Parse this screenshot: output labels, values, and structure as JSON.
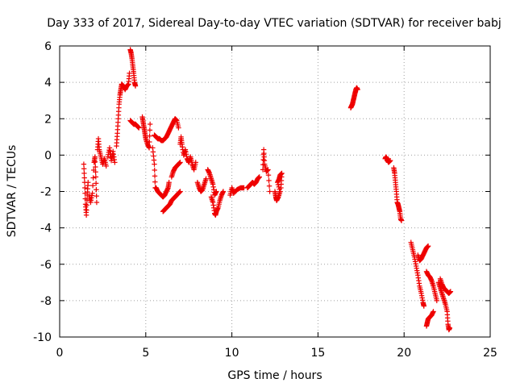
{
  "chart_data": {
    "type": "scatter",
    "title": "Day 333 of 2017, Sidereal Day-to-day VTEC variation (SDTVAR) for receiver babj",
    "xlabel": "GPS time / hours",
    "ylabel": "SDTVAR / TECUs",
    "xlim": [
      0,
      25
    ],
    "ylim": [
      -10,
      6
    ],
    "xticks": [
      0,
      5,
      10,
      15,
      20,
      25
    ],
    "yticks": [
      -10,
      -8,
      -6,
      -4,
      -2,
      0,
      2,
      4,
      6
    ],
    "grid": true,
    "marker": "+",
    "color": "#ee0000",
    "segments": [
      [
        [
          1.4,
          -0.5
        ],
        [
          1.45,
          -1.5
        ],
        [
          1.5,
          -2.7
        ],
        [
          1.55,
          -3.3
        ],
        [
          1.6,
          -2.2
        ],
        [
          1.65,
          -1.5
        ]
      ],
      [
        [
          1.7,
          -2.2
        ],
        [
          1.8,
          -2.6
        ],
        [
          1.9,
          -2.1
        ],
        [
          2.0,
          -0.4
        ],
        [
          2.05,
          -0.1
        ],
        [
          2.1,
          -1.2
        ],
        [
          2.15,
          -2.6
        ]
      ],
      [
        [
          2.2,
          0.3
        ],
        [
          2.25,
          0.9
        ],
        [
          2.3,
          0.3
        ],
        [
          2.4,
          -0.1
        ],
        [
          2.5,
          -0.5
        ],
        [
          2.6,
          -0.2
        ],
        [
          2.7,
          -0.6
        ]
      ],
      [
        [
          2.8,
          -0.1
        ],
        [
          2.9,
          0.4
        ],
        [
          3.0,
          -0.3
        ],
        [
          3.1,
          0.2
        ],
        [
          3.2,
          -0.4
        ]
      ],
      [
        [
          3.3,
          0.5
        ],
        [
          3.35,
          1.2
        ],
        [
          3.4,
          2.0
        ],
        [
          3.45,
          2.8
        ],
        [
          3.5,
          3.3
        ],
        [
          3.55,
          3.6
        ],
        [
          3.6,
          3.9
        ],
        [
          3.7,
          3.8
        ],
        [
          3.8,
          3.6
        ],
        [
          3.9,
          3.8
        ],
        [
          4.0,
          3.9
        ],
        [
          4.05,
          4.5
        ]
      ],
      [
        [
          4.1,
          5.8
        ],
        [
          4.15,
          5.6
        ],
        [
          4.2,
          5.3
        ],
        [
          4.25,
          4.9
        ],
        [
          4.3,
          4.5
        ],
        [
          4.35,
          4.0
        ],
        [
          4.4,
          3.8
        ]
      ],
      [
        [
          4.1,
          1.9
        ],
        [
          4.2,
          1.8
        ],
        [
          4.3,
          1.7
        ],
        [
          4.4,
          1.7
        ],
        [
          4.5,
          1.6
        ],
        [
          4.6,
          1.5
        ]
      ],
      [
        [
          4.8,
          2.1
        ],
        [
          4.85,
          1.8
        ],
        [
          4.9,
          1.5
        ],
        [
          4.95,
          1.2
        ],
        [
          5.0,
          0.9
        ],
        [
          5.1,
          0.6
        ],
        [
          5.2,
          0.4
        ],
        [
          5.25,
          1.7
        ]
      ],
      [
        [
          5.4,
          0.4
        ],
        [
          5.5,
          -0.5
        ],
        [
          5.55,
          -1.8
        ],
        [
          5.6,
          -1.8
        ],
        [
          5.7,
          -2.0
        ],
        [
          5.8,
          -2.1
        ],
        [
          5.9,
          -2.2
        ],
        [
          6.0,
          -2.3
        ],
        [
          6.1,
          -2.2
        ],
        [
          6.2,
          -2.0
        ],
        [
          6.3,
          -1.8
        ],
        [
          6.35,
          -1.5
        ]
      ],
      [
        [
          5.5,
          1.1
        ],
        [
          5.6,
          1.0
        ],
        [
          5.7,
          0.9
        ],
        [
          5.8,
          0.9
        ],
        [
          5.9,
          0.8
        ],
        [
          6.0,
          0.8
        ],
        [
          6.1,
          0.9
        ],
        [
          6.2,
          1.0
        ],
        [
          6.3,
          1.2
        ],
        [
          6.4,
          1.4
        ],
        [
          6.5,
          1.6
        ],
        [
          6.6,
          1.8
        ],
        [
          6.7,
          2.0
        ],
        [
          6.8,
          1.9
        ],
        [
          6.9,
          1.5
        ]
      ],
      [
        [
          6.0,
          -3.1
        ],
        [
          6.1,
          -3.0
        ],
        [
          6.2,
          -2.9
        ],
        [
          6.3,
          -2.8
        ],
        [
          6.4,
          -2.7
        ],
        [
          6.5,
          -2.5
        ],
        [
          6.6,
          -2.4
        ],
        [
          6.7,
          -2.3
        ],
        [
          6.8,
          -2.2
        ],
        [
          6.9,
          -2.1
        ],
        [
          7.0,
          -2.0
        ]
      ],
      [
        [
          6.5,
          -1.2
        ],
        [
          6.6,
          -0.9
        ],
        [
          6.7,
          -0.7
        ],
        [
          6.8,
          -0.6
        ],
        [
          6.9,
          -0.5
        ],
        [
          7.0,
          -0.4
        ]
      ],
      [
        [
          7.0,
          0.6
        ],
        [
          7.05,
          1.0
        ],
        [
          7.1,
          0.6
        ],
        [
          7.2,
          0.0
        ],
        [
          7.3,
          0.3
        ],
        [
          7.4,
          -0.2
        ],
        [
          7.5,
          -0.4
        ],
        [
          7.6,
          -0.1
        ],
        [
          7.7,
          -0.5
        ],
        [
          7.8,
          -0.8
        ],
        [
          7.9,
          -0.4
        ]
      ],
      [
        [
          8.0,
          -1.5
        ],
        [
          8.1,
          -1.8
        ],
        [
          8.2,
          -2.0
        ],
        [
          8.3,
          -1.9
        ],
        [
          8.4,
          -1.6
        ],
        [
          8.5,
          -1.3
        ]
      ],
      [
        [
          8.6,
          -0.8
        ],
        [
          8.7,
          -1.0
        ],
        [
          8.8,
          -1.3
        ],
        [
          8.9,
          -1.6
        ],
        [
          9.0,
          -2.2
        ],
        [
          9.1,
          -2.0
        ]
      ],
      [
        [
          8.8,
          -2.3
        ],
        [
          8.9,
          -2.6
        ],
        [
          9.0,
          -3.2
        ],
        [
          9.05,
          -3.3
        ],
        [
          9.1,
          -3.1
        ],
        [
          9.2,
          -2.9
        ],
        [
          9.3,
          -2.5
        ],
        [
          9.4,
          -2.2
        ],
        [
          9.5,
          -2.0
        ]
      ],
      [
        [
          9.9,
          -2.2
        ],
        [
          10.0,
          -1.8
        ],
        [
          10.1,
          -2.1
        ],
        [
          10.3,
          -1.9
        ],
        [
          10.5,
          -1.8
        ],
        [
          10.7,
          -1.8
        ]
      ],
      [
        [
          10.9,
          -1.8
        ],
        [
          11.0,
          -1.7
        ],
        [
          11.1,
          -1.6
        ],
        [
          11.2,
          -1.5
        ],
        [
          11.3,
          -1.6
        ],
        [
          11.4,
          -1.5
        ],
        [
          11.5,
          -1.3
        ],
        [
          11.6,
          -1.2
        ]
      ],
      [
        [
          11.8,
          -0.8
        ],
        [
          11.85,
          0.3
        ],
        [
          11.9,
          -0.5
        ],
        [
          12.0,
          -0.9
        ],
        [
          12.1,
          -0.8
        ],
        [
          12.2,
          -2.0
        ]
      ],
      [
        [
          12.5,
          -2.0
        ],
        [
          12.55,
          -2.3
        ],
        [
          12.6,
          -2.5
        ],
        [
          12.7,
          -2.3
        ],
        [
          12.8,
          -2.0
        ],
        [
          12.65,
          -1.5
        ],
        [
          12.75,
          -1.3
        ],
        [
          12.8,
          -1.1
        ],
        [
          12.9,
          -1.0
        ],
        [
          12.85,
          -1.8
        ]
      ],
      [
        [
          16.9,
          2.6
        ],
        [
          16.95,
          2.7
        ],
        [
          17.0,
          2.8
        ],
        [
          17.05,
          3.0
        ],
        [
          17.1,
          3.2
        ],
        [
          17.15,
          3.4
        ],
        [
          17.2,
          3.6
        ],
        [
          17.25,
          3.7
        ],
        [
          17.3,
          3.6
        ]
      ],
      [
        [
          18.9,
          -0.2
        ],
        [
          18.95,
          -0.1
        ],
        [
          19.0,
          -0.2
        ],
        [
          19.05,
          -0.3
        ],
        [
          19.1,
          -0.4
        ],
        [
          19.2,
          -0.3
        ]
      ],
      [
        [
          19.4,
          -0.7
        ],
        [
          19.45,
          -1.0
        ],
        [
          19.5,
          -1.5
        ],
        [
          19.55,
          -2.0
        ],
        [
          19.6,
          -2.6
        ],
        [
          19.65,
          -2.7
        ],
        [
          19.7,
          -2.9
        ],
        [
          19.75,
          -3.1
        ],
        [
          19.8,
          -3.5
        ],
        [
          19.85,
          -3.6
        ]
      ],
      [
        [
          20.4,
          -4.8
        ],
        [
          20.5,
          -5.2
        ],
        [
          20.6,
          -5.6
        ],
        [
          20.7,
          -6.1
        ],
        [
          20.8,
          -6.6
        ],
        [
          20.9,
          -7.2
        ],
        [
          21.0,
          -7.6
        ],
        [
          21.1,
          -8.1
        ],
        [
          21.15,
          -8.3
        ]
      ],
      [
        [
          20.8,
          -5.5
        ],
        [
          20.9,
          -5.8
        ],
        [
          21.0,
          -5.7
        ],
        [
          21.1,
          -5.5
        ],
        [
          21.2,
          -5.3
        ],
        [
          21.3,
          -5.1
        ],
        [
          21.4,
          -5.0
        ]
      ],
      [
        [
          21.3,
          -6.4
        ],
        [
          21.4,
          -6.6
        ],
        [
          21.5,
          -6.7
        ],
        [
          21.6,
          -6.9
        ],
        [
          21.7,
          -7.2
        ],
        [
          21.8,
          -7.6
        ],
        [
          21.9,
          -8.0
        ]
      ],
      [
        [
          21.3,
          -9.4
        ],
        [
          21.35,
          -9.2
        ],
        [
          21.4,
          -9.0
        ],
        [
          21.5,
          -8.9
        ],
        [
          21.6,
          -8.8
        ],
        [
          21.7,
          -8.6
        ]
      ],
      [
        [
          22.0,
          -7.0
        ],
        [
          22.1,
          -7.3
        ],
        [
          22.2,
          -7.6
        ],
        [
          22.3,
          -7.9
        ],
        [
          22.4,
          -8.2
        ],
        [
          22.5,
          -8.6
        ],
        [
          22.55,
          -9.3
        ],
        [
          22.6,
          -9.6
        ],
        [
          22.65,
          -9.5
        ]
      ],
      [
        [
          22.1,
          -6.8
        ],
        [
          22.2,
          -7.1
        ],
        [
          22.3,
          -7.3
        ],
        [
          22.4,
          -7.4
        ],
        [
          22.5,
          -7.5
        ],
        [
          22.6,
          -7.6
        ],
        [
          22.7,
          -7.5
        ]
      ]
    ]
  }
}
